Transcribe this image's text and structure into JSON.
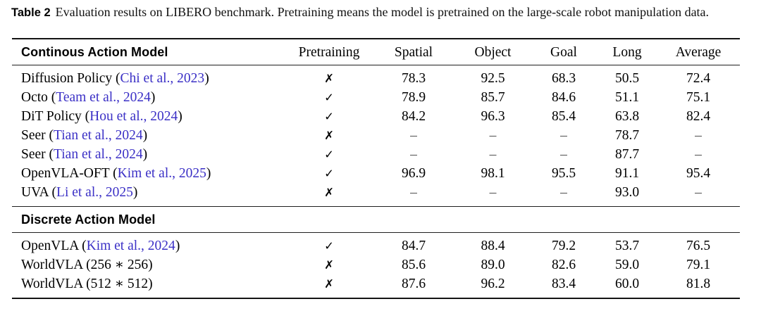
{
  "caption": {
    "label": "Table 2",
    "text": "Evaluation results on LIBERO benchmark. Pretraining means the model is pretrained on the large-scale robot manipulation data."
  },
  "colors": {
    "citation_link": "#3b30c6",
    "text": "#000000",
    "rule": "#141414"
  },
  "table": {
    "columns": {
      "pretraining": "Pretraining",
      "spatial": "Spatial",
      "object": "Object",
      "goal": "Goal",
      "long": "Long",
      "average": "Average"
    },
    "section1": {
      "header": "Continous Action Model",
      "rows": [
        {
          "model_prefix": "Diffusion Policy (",
          "citation": "Chi et al., 2023",
          "model_suffix": ")",
          "pretraining": "✗",
          "spatial": "78.3",
          "object": "92.5",
          "goal": "68.3",
          "long": "50.5",
          "average": "72.4"
        },
        {
          "model_prefix": "Octo (",
          "citation": "Team et al., 2024",
          "model_suffix": ")",
          "pretraining": "✓",
          "spatial": "78.9",
          "object": "85.7",
          "goal": "84.6",
          "long": "51.1",
          "average": "75.1"
        },
        {
          "model_prefix": "DiT Policy (",
          "citation": "Hou et al., 2024",
          "model_suffix": ")",
          "pretraining": "✓",
          "spatial": "84.2",
          "object": "96.3",
          "goal": "85.4",
          "long": "63.8",
          "average": "82.4"
        },
        {
          "model_prefix": "Seer (",
          "citation": "Tian et al., 2024",
          "model_suffix": ")",
          "pretraining": "✗",
          "spatial": "–",
          "object": "–",
          "goal": "–",
          "long": "78.7",
          "average": "–"
        },
        {
          "model_prefix": "Seer (",
          "citation": "Tian et al., 2024",
          "model_suffix": ")",
          "pretraining": "✓",
          "spatial": "–",
          "object": "–",
          "goal": "–",
          "long": "87.7",
          "average": "–"
        },
        {
          "model_prefix": "OpenVLA-OFT (",
          "citation": "Kim et al., 2025",
          "model_suffix": ")",
          "pretraining": "✓",
          "spatial": "96.9",
          "object": "98.1",
          "goal": "95.5",
          "long": "91.1",
          "average": "95.4"
        },
        {
          "model_prefix": "UVA (",
          "citation": "Li et al., 2025",
          "model_suffix": ")",
          "pretraining": "✗",
          "spatial": "–",
          "object": "–",
          "goal": "–",
          "long": "93.0",
          "average": "–"
        }
      ]
    },
    "section2": {
      "header": "Discrete Action Model",
      "rows": [
        {
          "model_prefix": "OpenVLA (",
          "citation": "Kim et al., 2024",
          "model_suffix": ")",
          "pretraining": "✓",
          "spatial": "84.7",
          "object": "88.4",
          "goal": "79.2",
          "long": "53.7",
          "average": "76.5"
        },
        {
          "model_prefix": "WorldVLA (256 ∗ 256)",
          "citation": "",
          "model_suffix": "",
          "pretraining": "✗",
          "spatial": "85.6",
          "object": "89.0",
          "goal": "82.6",
          "long": "59.0",
          "average": "79.1"
        },
        {
          "model_prefix": "WorldVLA (512 ∗ 512)",
          "citation": "",
          "model_suffix": "",
          "pretraining": "✗",
          "spatial": "87.6",
          "object": "96.2",
          "goal": "83.4",
          "long": "60.0",
          "average": "81.8"
        }
      ]
    }
  }
}
